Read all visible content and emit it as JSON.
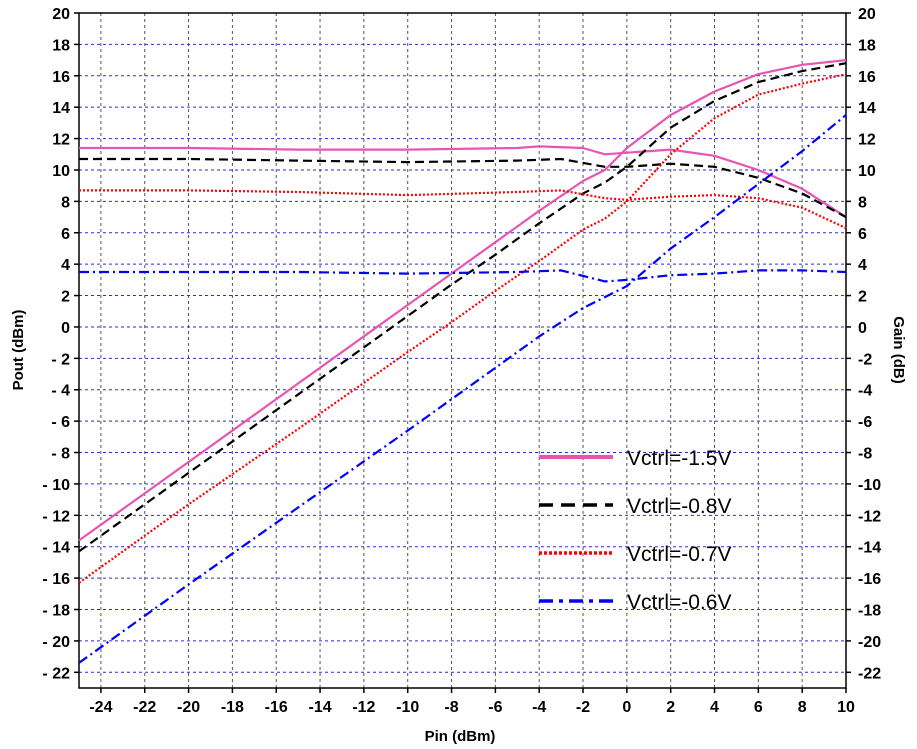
{
  "chart_data": {
    "type": "line",
    "title": "",
    "xlabel": "Pin (dBm)",
    "ylabel": "Pout (dBm)",
    "y2label": "Gain (dB)",
    "xlim": [
      -25,
      10
    ],
    "ylim": [
      -23,
      20
    ],
    "y2lim": [
      -23,
      20
    ],
    "grid": true,
    "legend_position": "bottom-right",
    "x_ticks": [
      -24,
      -22,
      -20,
      -18,
      -16,
      -14,
      -12,
      -10,
      -8,
      -6,
      -4,
      -2,
      0,
      2,
      4,
      6,
      8,
      10
    ],
    "y_ticks": [
      20,
      18,
      16,
      14,
      12,
      10,
      8,
      6,
      4,
      2,
      0,
      -2,
      -4,
      -6,
      -8,
      -10,
      -12,
      -14,
      -16,
      -18,
      -20,
      -22
    ],
    "x_tick_labels": [
      "-24",
      "-22",
      "-20",
      "-18",
      "-16",
      "-14",
      "-12",
      "-10",
      "-8",
      "-6",
      "-4",
      "-2",
      "0",
      "2",
      "4",
      "6",
      "8",
      "10"
    ],
    "y_tick_labels": [
      "20",
      "18",
      "16",
      "14",
      "12",
      "10",
      "8",
      "6",
      "4",
      "2",
      "0",
      "- 2",
      "- 4",
      "- 6",
      "- 8",
      "- 10",
      "- 12",
      "- 14",
      "- 16",
      "- 18",
      "- 20",
      "- 22"
    ],
    "y2_tick_labels": [
      "20",
      "18",
      "16",
      "14",
      "12",
      "10",
      "8",
      "6",
      "4",
      "2",
      "0",
      "-2",
      "-4",
      "-6",
      "-8",
      "-10",
      "-12",
      "-14",
      "-16",
      "-18",
      "-20",
      "-22"
    ],
    "series": [
      {
        "name": "Vctrl=-1.5V",
        "color": "#e754b4",
        "dash": "solid",
        "pout": {
          "x": [
            -25,
            -20,
            -15,
            -10,
            -8,
            -6,
            -4,
            -2,
            -1,
            0,
            2,
            4,
            6,
            8,
            10
          ],
          "y": [
            -13.6,
            -8.6,
            -3.6,
            1.4,
            3.4,
            5.4,
            7.4,
            9.3,
            10.0,
            11.4,
            13.5,
            15.0,
            16.1,
            16.7,
            17.0
          ]
        },
        "gain": {
          "x": [
            -25,
            -20,
            -15,
            -10,
            -5,
            -4,
            -2,
            -1,
            0,
            2,
            4,
            6,
            8,
            10
          ],
          "y": [
            11.4,
            11.4,
            11.3,
            11.3,
            11.4,
            11.5,
            11.4,
            11.0,
            11.1,
            11.3,
            10.9,
            10.0,
            8.8,
            7.0
          ]
        }
      },
      {
        "name": "Vctrl=-0.8V",
        "color": "#000000",
        "dash": "dashed",
        "pout": {
          "x": [
            -25,
            -20,
            -15,
            -10,
            -8,
            -6,
            -4,
            -2,
            -1,
            0,
            2,
            4,
            6,
            8,
            10
          ],
          "y": [
            -14.3,
            -9.3,
            -4.3,
            0.7,
            2.7,
            4.6,
            6.6,
            8.5,
            9.2,
            10.2,
            12.7,
            14.4,
            15.6,
            16.3,
            16.8
          ]
        },
        "gain": {
          "x": [
            -25,
            -20,
            -15,
            -10,
            -5,
            -3,
            -1,
            0,
            2,
            4,
            6,
            8,
            10
          ],
          "y": [
            10.7,
            10.7,
            10.6,
            10.5,
            10.6,
            10.7,
            10.2,
            10.2,
            10.4,
            10.2,
            9.5,
            8.5,
            7.0
          ]
        }
      },
      {
        "name": "Vctrl=-0.7V",
        "color": "#ff0000",
        "dash": "dotted",
        "pout": {
          "x": [
            -25,
            -20,
            -15,
            -10,
            -8,
            -6,
            -4,
            -2,
            -1,
            0,
            2,
            4,
            6,
            8,
            10
          ],
          "y": [
            -16.3,
            -11.3,
            -6.5,
            -1.6,
            0.3,
            2.3,
            4.2,
            6.2,
            6.9,
            8.0,
            11.0,
            13.3,
            14.8,
            15.5,
            16.1
          ]
        },
        "gain": {
          "x": [
            -25,
            -20,
            -15,
            -10,
            -5,
            -3,
            -1,
            0,
            2,
            4,
            6,
            8,
            10
          ],
          "y": [
            8.7,
            8.7,
            8.6,
            8.4,
            8.6,
            8.7,
            8.2,
            8.1,
            8.3,
            8.4,
            8.2,
            7.6,
            6.3
          ]
        }
      },
      {
        "name": "Vctrl=-0.6V",
        "color": "#0000ff",
        "dash": "dashdot",
        "pout": {
          "x": [
            -25,
            -20,
            -15,
            -10,
            -6,
            -4,
            -2,
            -1,
            0,
            2,
            4,
            6,
            8,
            10
          ],
          "y": [
            -21.4,
            -16.4,
            -11.5,
            -6.6,
            -2.6,
            -0.6,
            1.2,
            1.9,
            2.6,
            5.0,
            7.0,
            9.1,
            11.2,
            13.5
          ]
        },
        "gain": {
          "x": [
            -25,
            -20,
            -15,
            -10,
            -5,
            -3,
            -1,
            0,
            2,
            4,
            6,
            8,
            10
          ],
          "y": [
            3.5,
            3.5,
            3.5,
            3.4,
            3.5,
            3.6,
            2.9,
            3.0,
            3.3,
            3.4,
            3.6,
            3.6,
            3.5
          ]
        }
      }
    ]
  }
}
